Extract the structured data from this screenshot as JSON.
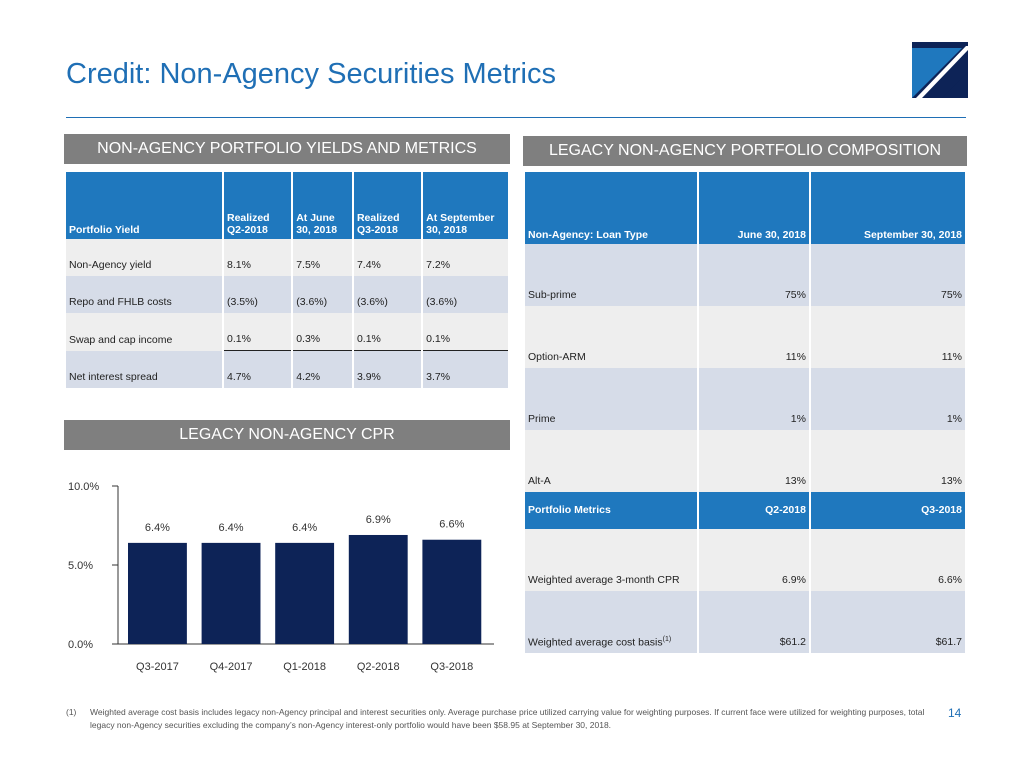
{
  "title": "Credit: Non-Agency Securities Metrics",
  "sections": {
    "yields_header": "NON-AGENCY PORTFOLIO YIELDS AND METRICS",
    "composition_header": "LEGACY NON-AGENCY PORTFOLIO COMPOSITION",
    "cpr_header": "LEGACY NON-AGENCY CPR"
  },
  "yields_table": {
    "headers": [
      "Portfolio Yield",
      "Realized Q2-2018",
      "At June 30, 2018",
      "Realized Q3-2018",
      "At September 30, 2018"
    ],
    "rows": [
      {
        "label": "Non-Agency yield",
        "values": [
          "8.1%",
          "7.5%",
          "7.4%",
          "7.2%"
        ]
      },
      {
        "label": "Repo and FHLB costs",
        "values": [
          "(3.5%)",
          "(3.6%)",
          "(3.6%)",
          "(3.6%)"
        ]
      },
      {
        "label": "Swap and cap income",
        "values": [
          "0.1%",
          "0.3%",
          "0.1%",
          "0.1%"
        ]
      },
      {
        "label": "Net interest spread",
        "values": [
          "4.7%",
          "4.2%",
          "3.9%",
          "3.7%"
        ]
      }
    ]
  },
  "composition_table": {
    "headers": [
      "Non-Agency: Loan Type",
      "June 30, 2018",
      "September 30, 2018"
    ],
    "rows": [
      {
        "label": "Sub-prime",
        "values": [
          "75%",
          "75%"
        ]
      },
      {
        "label": "Option-ARM",
        "values": [
          "11%",
          "11%"
        ]
      },
      {
        "label": "Prime",
        "values": [
          "1%",
          "1%"
        ]
      },
      {
        "label": "Alt-A",
        "values": [
          "13%",
          "13%"
        ]
      }
    ],
    "metrics_headers": [
      "Portfolio Metrics",
      "Q2-2018",
      "Q3-2018"
    ],
    "metrics_rows": [
      {
        "label": "Weighted average 3-month CPR",
        "values": [
          "6.9%",
          "6.6%"
        ]
      },
      {
        "label": "Weighted average cost basis",
        "sup": "(1)",
        "values": [
          "$61.2",
          "$61.7"
        ]
      }
    ]
  },
  "chart_data": {
    "type": "bar",
    "categories": [
      "Q3-2017",
      "Q4-2017",
      "Q1-2018",
      "Q2-2018",
      "Q3-2018"
    ],
    "values": [
      6.4,
      6.4,
      6.4,
      6.9,
      6.6
    ],
    "data_labels": [
      "6.4%",
      "6.4%",
      "6.4%",
      "6.9%",
      "6.6%"
    ],
    "yticks": [
      "10.0%",
      "5.0%",
      "0.0%"
    ],
    "ylim": [
      0,
      10
    ],
    "bar_color": "#0d2357",
    "title": "",
    "xlabel": "",
    "ylabel": ""
  },
  "footnote": {
    "mark": "(1)",
    "text": "Weighted average cost basis includes legacy non-Agency principal and interest securities only.  Average purchase price utilized carrying value for weighting purposes.  If current face were utilized for weighting purposes, total legacy non-Agency securities excluding the company’s non-Agency interest-only portfolio would have been $58.95 at September 30, 2018."
  },
  "page_number": "14",
  "colors": {
    "accent": "#1f6fb5",
    "header_bg": "#1f78be",
    "section_bg": "#7f7f7f",
    "logo_dark": "#0d2357"
  }
}
